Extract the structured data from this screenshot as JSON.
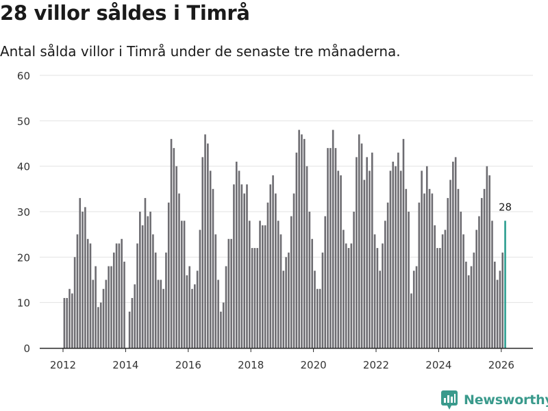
{
  "header": {
    "title": "28 villor såldes i Timrå",
    "subtitle": "Antal sålda villor i Timrå under de senaste tre månaderna."
  },
  "brand": {
    "name": "Newsworthy",
    "icon": "newsworthy-logo-icon",
    "color": "#3a9a8c"
  },
  "chart_data": {
    "type": "bar",
    "title": "28 villor såldes i Timrå",
    "subtitle": "Antal sålda villor i Timrå under de senaste tre månaderna.",
    "xlabel": "",
    "ylabel": "",
    "ylim": [
      0,
      60
    ],
    "yticks": [
      0,
      10,
      20,
      30,
      40,
      50,
      60
    ],
    "xticks": [
      "2012",
      "2014",
      "2016",
      "2018",
      "2020",
      "2022",
      "2024",
      "2026"
    ],
    "grid": true,
    "start": "2012-01",
    "end": "2026-03",
    "bar_color": "#6d6c71",
    "highlight_color": "#2a9d8f",
    "highlight_label": "28",
    "values": [
      11,
      11,
      13,
      12,
      20,
      25,
      33,
      30,
      31,
      24,
      23,
      15,
      18,
      9,
      10,
      13,
      15,
      18,
      18,
      21,
      23,
      23,
      24,
      19,
      0,
      8,
      11,
      14,
      23,
      30,
      27,
      33,
      29,
      30,
      25,
      21,
      15,
      15,
      13,
      21,
      32,
      46,
      44,
      40,
      34,
      28,
      28,
      16,
      18,
      13,
      14,
      17,
      26,
      42,
      47,
      45,
      39,
      35,
      25,
      15,
      8,
      10,
      18,
      24,
      24,
      36,
      41,
      39,
      36,
      34,
      36,
      28,
      22,
      22,
      22,
      28,
      27,
      27,
      32,
      36,
      38,
      34,
      28,
      25,
      17,
      20,
      21,
      29,
      34,
      43,
      48,
      47,
      46,
      40,
      30,
      24,
      17,
      13,
      13,
      21,
      29,
      44,
      44,
      48,
      44,
      39,
      38,
      26,
      23,
      22,
      23,
      30,
      42,
      47,
      45,
      37,
      42,
      39,
      43,
      25,
      22,
      17,
      23,
      28,
      32,
      39,
      41,
      40,
      43,
      39,
      46,
      35,
      30,
      12,
      17,
      18,
      32,
      39,
      34,
      40,
      35,
      34,
      27,
      22,
      22,
      25,
      26,
      33,
      37,
      41,
      42,
      35,
      30,
      25,
      19,
      16,
      18,
      21,
      26,
      29,
      33,
      35,
      40,
      38,
      28,
      19,
      15,
      17,
      21,
      28
    ]
  }
}
